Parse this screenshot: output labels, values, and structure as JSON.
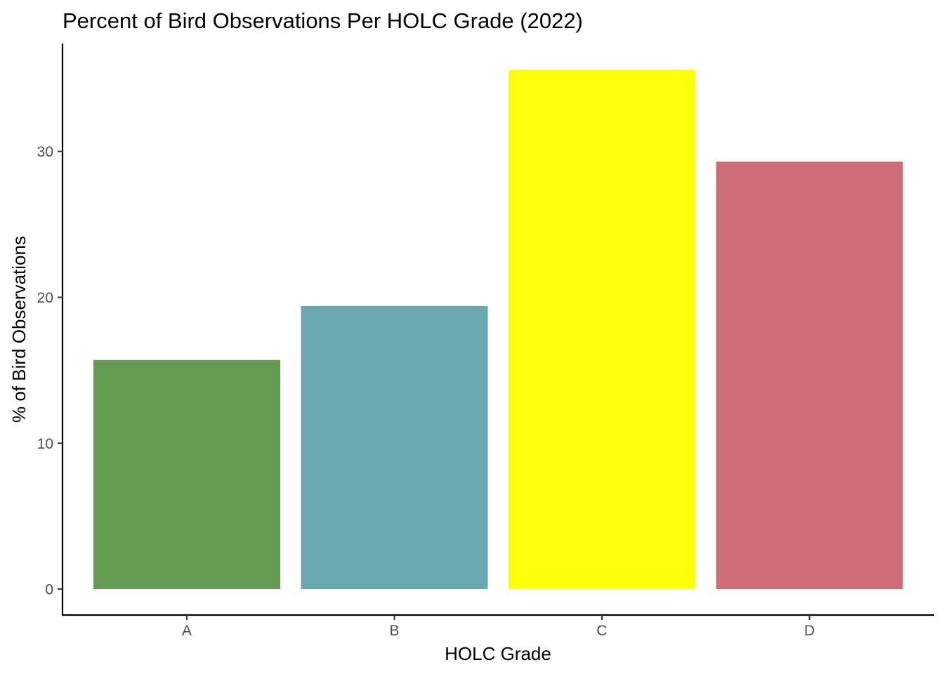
{
  "chart_data": {
    "type": "bar",
    "title": "Percent of Bird Observations Per HOLC Grade (2022)",
    "xlabel": "HOLC Grade",
    "ylabel": "% of Bird Observations",
    "categories": [
      "A",
      "B",
      "C",
      "D"
    ],
    "values": [
      15.7,
      19.4,
      35.6,
      29.3
    ],
    "colors": [
      "#669B53",
      "#6BA7B0",
      "#FFFF0A",
      "#CC6D78"
    ],
    "ylim": [
      -1.78,
      37.4
    ],
    "yticks": [
      0,
      10,
      20,
      30
    ],
    "ytick_labels": [
      "0",
      "10",
      "20",
      "30"
    ],
    "grid": false,
    "legend": "none"
  }
}
